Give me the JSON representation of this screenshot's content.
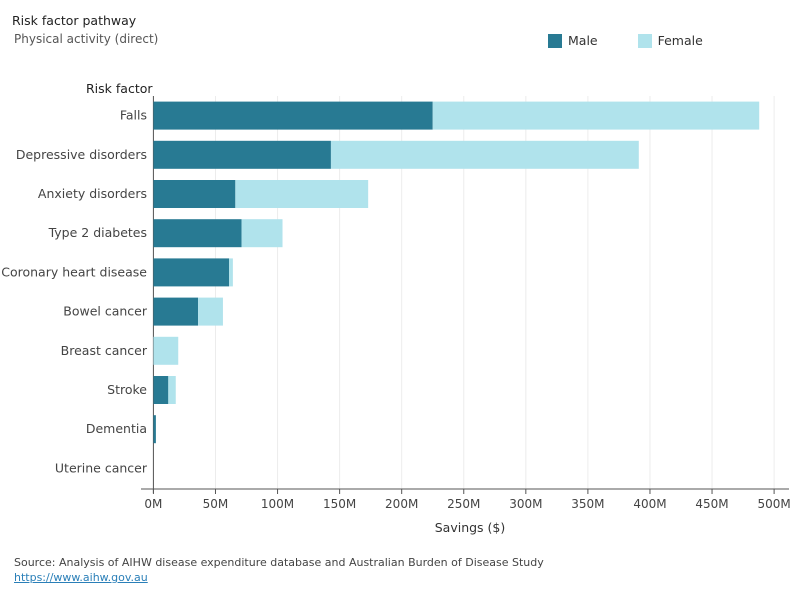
{
  "header": {
    "title": "Risk factor pathway",
    "subtitle": "Physical activity (direct)"
  },
  "category_header": "Risk factor",
  "legend": [
    {
      "label": "Male",
      "color": "#287a93"
    },
    {
      "label": "Female",
      "color": "#b0e3ec"
    }
  ],
  "footer": {
    "source": "Source: Analysis of AIHW disease expenditure database and Australian Burden of Disease Study",
    "link": "https://www.aihw.gov.au"
  },
  "chart_data": {
    "type": "bar",
    "orientation": "horizontal",
    "stacked": true,
    "categories": [
      "Falls",
      "Depressive disorders",
      "Anxiety disorders",
      "Type 2 diabetes",
      "Coronary heart disease",
      "Bowel cancer",
      "Breast cancer",
      "Stroke",
      "Dementia",
      "Uterine cancer"
    ],
    "series": [
      {
        "name": "Male",
        "color": "#287a93",
        "values": [
          225,
          143,
          66,
          71,
          61,
          36,
          0,
          12,
          2,
          0
        ]
      },
      {
        "name": "Female",
        "color": "#b0e3ec",
        "values": [
          263,
          248,
          107,
          33,
          3,
          20,
          20,
          6,
          0,
          0
        ]
      }
    ],
    "xlabel": "Savings ($)",
    "ylabel": "Risk factor",
    "xlim": [
      -10,
      512
    ],
    "xticks": [
      0,
      50,
      100,
      150,
      200,
      250,
      300,
      350,
      400,
      450,
      500
    ],
    "xticklabels": [
      "0M",
      "50M",
      "100M",
      "150M",
      "200M",
      "250M",
      "300M",
      "350M",
      "400M",
      "450M",
      "500M"
    ],
    "grid": "vertical",
    "legend_position": "top-right"
  }
}
